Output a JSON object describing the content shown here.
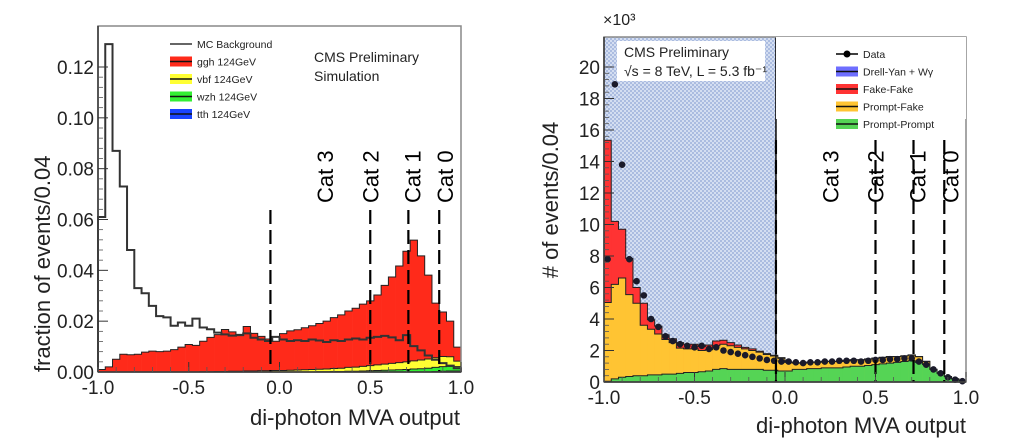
{
  "chart_data": [
    {
      "type": "bar",
      "subtype": "stacked-histogram",
      "title": "",
      "annotation": [
        "CMS Preliminary",
        "Simulation"
      ],
      "xlabel": "di-photon MVA output",
      "ylabel": "fraction of events/0.04",
      "xlim": [
        -1.0,
        1.0
      ],
      "ylim": [
        0.0,
        0.135
      ],
      "x_ticks": [
        "-1.0",
        "-0.5",
        "0.0",
        "0.5",
        "1.0"
      ],
      "x_tick_values": [
        -1.0,
        -0.5,
        0.0,
        0.5,
        1.0
      ],
      "y_ticks": [
        "0.00",
        "0.02",
        "0.04",
        "0.06",
        "0.08",
        "0.10",
        "0.12"
      ],
      "y_tick_values": [
        0.0,
        0.02,
        0.04,
        0.06,
        0.08,
        0.1,
        0.12
      ],
      "bin_width": 0.04,
      "legend_position": "top-left",
      "legend": [
        {
          "label": "MC Background",
          "style": "line",
          "color": "#333333"
        },
        {
          "label": "ggh 124GeV",
          "style": "fill",
          "color": "#ff2a1a"
        },
        {
          "label": "vbf 124GeV",
          "style": "fill",
          "color": "#ffff33"
        },
        {
          "label": "wzh 124GeV",
          "style": "fill",
          "color": "#33ee33"
        },
        {
          "label": "tth 124GeV",
          "style": "fill",
          "color": "#1a44ff"
        }
      ],
      "category_boundaries": [
        -0.05,
        0.5,
        0.71,
        0.88
      ],
      "category_labels": [
        "Cat 3",
        "Cat 2",
        "Cat 1",
        "Cat 0"
      ],
      "series": [
        {
          "name": "tth 124GeV",
          "values": [
            0,
            0,
            0,
            0,
            0,
            0,
            0,
            0,
            0,
            0,
            0,
            0,
            0,
            0,
            0,
            0,
            0,
            0,
            0,
            0,
            0,
            0,
            0,
            0,
            0,
            0,
            0,
            0,
            0,
            0,
            0,
            0,
            0,
            0,
            0,
            0,
            0,
            0,
            0,
            0,
            0,
            0,
            0,
            0,
            0,
            0,
            0.0002,
            0.0003,
            0.0004,
            0.0004
          ]
        },
        {
          "name": "wzh 124GeV",
          "values": [
            0,
            0,
            0,
            0,
            0,
            0,
            0,
            0,
            0,
            0,
            0,
            0,
            0,
            0,
            0,
            0,
            0,
            0,
            0,
            0,
            0,
            0,
            0,
            0,
            0,
            0,
            0,
            0,
            0,
            0,
            0.0001,
            0.0001,
            0.0002,
            0.0002,
            0.0003,
            0.0003,
            0.0004,
            0.0005,
            0.0006,
            0.0007,
            0.0008,
            0.0009,
            0.001,
            0.0012,
            0.0013,
            0.0015,
            0.0016,
            0.0018,
            0.0018,
            0.0017
          ]
        },
        {
          "name": "vbf 124GeV",
          "values": [
            0,
            0,
            0,
            0,
            0,
            0,
            0,
            0,
            0,
            0,
            0,
            0,
            0,
            0,
            0.0001,
            0.0001,
            0.0002,
            0.0002,
            0.0003,
            0.0003,
            0.0004,
            0.0004,
            0.0005,
            0.0005,
            0.0006,
            0.0006,
            0.0007,
            0.0008,
            0.0009,
            0.001,
            0.001,
            0.0011,
            0.0012,
            0.0013,
            0.0015,
            0.0016,
            0.0018,
            0.002,
            0.0022,
            0.0024,
            0.0026,
            0.0028,
            0.003,
            0.0032,
            0.0034,
            0.0036,
            0.0038,
            0.004,
            0.0038,
            0.0022
          ]
        },
        {
          "name": "ggh 124GeV",
          "values": [
            0.001,
            0.002,
            0.005,
            0.007,
            0.0068,
            0.007,
            0.0078,
            0.0082,
            0.008,
            0.0082,
            0.0088,
            0.0098,
            0.0108,
            0.0105,
            0.012,
            0.0135,
            0.0145,
            0.0165,
            0.0155,
            0.0145,
            0.0175,
            0.0148,
            0.0135,
            0.0125,
            0.0115,
            0.0145,
            0.0155,
            0.0158,
            0.0165,
            0.0172,
            0.018,
            0.0188,
            0.02,
            0.021,
            0.0222,
            0.0232,
            0.0245,
            0.0255,
            0.0275,
            0.031,
            0.034,
            0.038,
            0.0435,
            0.0475,
            0.041,
            0.033,
            0.0215,
            0.0175,
            0.014,
            0.0055
          ]
        },
        {
          "name": "MC Background",
          "values": [
            0.061,
            0.129,
            0.087,
            0.073,
            0.048,
            0.033,
            0.031,
            0.026,
            0.022,
            0.0215,
            0.0182,
            0.0195,
            0.0182,
            0.021,
            0.0175,
            0.0168,
            0.0155,
            0.0148,
            0.0143,
            0.0145,
            0.0152,
            0.0135,
            0.0128,
            0.0122,
            0.0138,
            0.0128,
            0.0122,
            0.0125,
            0.0122,
            0.0128,
            0.0124,
            0.0118,
            0.0125,
            0.0122,
            0.0128,
            0.0132,
            0.0128,
            0.0135,
            0.0138,
            0.0142,
            0.0136,
            0.0125,
            0.0145,
            0.0102,
            0.0085,
            0.0065,
            0.0048,
            0.0035,
            0.0025,
            0.0015
          ]
        }
      ]
    },
    {
      "type": "bar",
      "subtype": "stacked-histogram-with-data",
      "title": "",
      "annotation": [
        "CMS Preliminary",
        "√s = 8 TeV, L = 5.3 fb⁻¹"
      ],
      "xlabel": "di-photon MVA output",
      "ylabel": "# of events/0.04",
      "y_multiplier": "×10³",
      "xlim": [
        -1.0,
        1.0
      ],
      "ylim": [
        0,
        22
      ],
      "x_ticks": [
        "-1.0",
        "-0.5",
        "0.0",
        "0.5",
        "1.0"
      ],
      "x_tick_values": [
        -1.0,
        -0.5,
        0.0,
        0.5,
        1.0
      ],
      "y_ticks": [
        "0",
        "2",
        "4",
        "6",
        "8",
        "10",
        "12",
        "14",
        "16",
        "18",
        "20"
      ],
      "y_tick_values": [
        0,
        2,
        4,
        6,
        8,
        10,
        12,
        14,
        16,
        18,
        20
      ],
      "bin_width": 0.04,
      "legend_position": "top-right",
      "legend": [
        {
          "label": "Data",
          "style": "marker",
          "color": "#000000"
        },
        {
          "label": "Drell-Yan + Wγ",
          "style": "fill",
          "color": "#6e6eff"
        },
        {
          "label": "Fake-Fake",
          "style": "fill",
          "color": "#ff3333"
        },
        {
          "label": "Prompt-Fake",
          "style": "fill",
          "color": "#ffc433"
        },
        {
          "label": "Prompt-Prompt",
          "style": "fill",
          "color": "#55d455"
        }
      ],
      "hatched_region": [
        -1.0,
        -0.05
      ],
      "category_boundaries": [
        -0.05,
        0.5,
        0.71,
        0.88
      ],
      "category_labels": [
        "Cat 3",
        "Cat 2",
        "Cat 1",
        "Cat 0"
      ],
      "series": [
        {
          "name": "Prompt-Prompt",
          "values": [
            0.05,
            0.2,
            0.3,
            0.35,
            0.4,
            0.4,
            0.45,
            0.45,
            0.5,
            0.5,
            0.55,
            0.6,
            0.6,
            0.65,
            0.7,
            0.8,
            0.85,
            0.8,
            0.8,
            0.8,
            0.8,
            0.8,
            0.75,
            0.75,
            0.7,
            0.7,
            0.8,
            0.8,
            0.85,
            0.85,
            0.9,
            0.9,
            0.9,
            0.95,
            1.0,
            1.0,
            1.05,
            1.1,
            1.15,
            1.2,
            1.25,
            1.3,
            1.35,
            1.25,
            1.1,
            0.8,
            0.55,
            0.35,
            0.2,
            0.1
          ]
        },
        {
          "name": "Prompt-Fake",
          "values": [
            5.0,
            6.0,
            6.3,
            5.2,
            4.6,
            3.2,
            2.9,
            2.6,
            2.2,
            2.0,
            1.6,
            1.5,
            1.5,
            1.35,
            1.35,
            1.5,
            1.55,
            1.5,
            1.4,
            1.3,
            1.2,
            1.1,
            1.0,
            0.9,
            0.8,
            0.55,
            0.4,
            0.4,
            0.4,
            0.4,
            0.4,
            0.4,
            0.4,
            0.4,
            0.4,
            0.4,
            0.4,
            0.4,
            0.4,
            0.4,
            0.35,
            0.35,
            0.35,
            0.35,
            0.2,
            0.0,
            0.0,
            0.0,
            0.0,
            0.0
          ]
        },
        {
          "name": "Fake-Fake",
          "values": [
            10.3,
            4.0,
            3.1,
            2.3,
            1.0,
            1.4,
            0.6,
            0.5,
            0.3,
            0.25,
            0.35,
            0.3,
            0.3,
            0.25,
            0.3,
            0.3,
            0.25,
            0.2,
            0.15,
            0.1,
            0.1,
            0.05,
            0.05,
            0.05,
            0.05,
            0.02,
            0.02,
            0.02,
            0.02,
            0.02,
            0.02,
            0.02,
            0.02,
            0.02,
            0.02,
            0.02,
            0.02,
            0.02,
            0.02,
            0.02,
            0.02,
            0.02,
            0.02,
            0.02,
            0.02,
            0,
            0,
            0,
            0,
            0
          ]
        },
        {
          "name": "Drell-Yan + Wγ",
          "values": [
            0,
            0,
            0,
            0,
            0,
            0,
            0,
            0,
            0,
            0,
            0,
            0,
            0,
            0,
            0,
            0,
            0,
            0,
            0,
            0,
            0,
            0,
            0,
            0,
            0,
            0,
            0,
            0,
            0,
            0,
            0,
            0,
            0,
            0,
            0,
            0,
            0,
            0,
            0,
            0,
            0,
            0,
            0,
            0,
            0,
            0,
            0,
            0,
            0,
            0
          ]
        },
        {
          "name": "Data",
          "values": [
            7.8,
            18.9,
            13.8,
            7.8,
            6.4,
            5.5,
            4.0,
            3.5,
            2.9,
            2.6,
            2.4,
            2.3,
            2.2,
            2.3,
            2.1,
            2.2,
            2.0,
            1.9,
            1.8,
            1.7,
            1.6,
            1.5,
            1.4,
            1.35,
            1.3,
            1.3,
            1.25,
            1.2,
            1.25,
            1.25,
            1.3,
            1.3,
            1.35,
            1.35,
            1.35,
            1.3,
            1.35,
            1.4,
            1.4,
            1.45,
            1.45,
            1.5,
            1.5,
            1.3,
            1.1,
            0.8,
            0.55,
            0.3,
            0.15,
            0.05
          ]
        }
      ]
    }
  ]
}
